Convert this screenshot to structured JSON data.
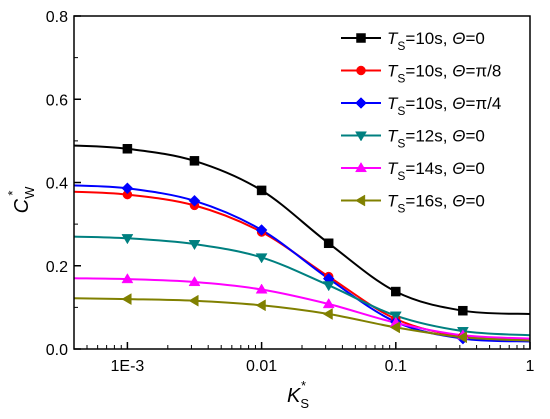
{
  "chart_data": {
    "type": "line",
    "title": "",
    "xlabel": {
      "main": "K",
      "sub": "S",
      "sup": "*"
    },
    "ylabel": {
      "main": "C",
      "sub": "W",
      "sup": "*"
    },
    "xscale": "log",
    "xlim": [
      0.0004,
      1
    ],
    "ylim": [
      0,
      0.8
    ],
    "xticks": [
      {
        "value": 0.001,
        "label": "1E-3"
      },
      {
        "value": 0.01,
        "label": "0.01"
      },
      {
        "value": 0.1,
        "label": "0.1"
      },
      {
        "value": 1,
        "label": "1"
      }
    ],
    "yticks": [
      {
        "value": 0.0,
        "label": "0.0"
      },
      {
        "value": 0.2,
        "label": "0.2"
      },
      {
        "value": 0.4,
        "label": "0.4"
      },
      {
        "value": 0.6,
        "label": "0.6"
      },
      {
        "value": 0.8,
        "label": "0.8"
      }
    ],
    "grid": false,
    "legend_position": "top-right",
    "series": [
      {
        "name": "T_S=10s, Θ=0",
        "legend": {
          "a": "T",
          "b": "S",
          "c": "=10s, ",
          "d": "Θ",
          "e": "=0"
        },
        "color": "#000000",
        "marker": "square",
        "x": [
          0.0004,
          0.001,
          0.00316,
          0.01,
          0.0316,
          0.1,
          0.316,
          1
        ],
        "y": [
          0.489,
          0.481,
          0.452,
          0.381,
          0.254,
          0.138,
          0.092,
          0.084
        ]
      },
      {
        "name": "T_S=10s, Θ=π/8",
        "legend": {
          "a": "T",
          "b": "S",
          "c": "=10s, ",
          "d": "Θ",
          "e": "=π/8"
        },
        "color": "#ff0000",
        "marker": "circle",
        "x": [
          0.0004,
          0.001,
          0.00316,
          0.01,
          0.0316,
          0.1,
          0.316,
          1
        ],
        "y": [
          0.378,
          0.371,
          0.345,
          0.281,
          0.174,
          0.072,
          0.03,
          0.022
        ]
      },
      {
        "name": "T_S=10s, Θ=π/4",
        "legend": {
          "a": "T",
          "b": "S",
          "c": "=10s, ",
          "d": "Θ",
          "e": "=π/4"
        },
        "color": "#0000ff",
        "marker": "diamond",
        "x": [
          0.0004,
          0.001,
          0.00316,
          0.01,
          0.0316,
          0.1,
          0.316,
          1
        ],
        "y": [
          0.393,
          0.386,
          0.356,
          0.286,
          0.169,
          0.065,
          0.025,
          0.018
        ]
      },
      {
        "name": "T_S=12s, Θ=0",
        "legend": {
          "a": "T",
          "b": "S",
          "c": "=12s, ",
          "d": "Θ",
          "e": "=0"
        },
        "color": "#008080",
        "marker": "triangle-down",
        "x": [
          0.0004,
          0.001,
          0.00316,
          0.01,
          0.0316,
          0.1,
          0.316,
          1
        ],
        "y": [
          0.27,
          0.266,
          0.252,
          0.22,
          0.153,
          0.08,
          0.043,
          0.033
        ]
      },
      {
        "name": "T_S=14s, Θ=0",
        "legend": {
          "a": "T",
          "b": "S",
          "c": "=14s, ",
          "d": "Θ",
          "e": "=0"
        },
        "color": "#ff00ff",
        "marker": "triangle-up",
        "x": [
          0.0004,
          0.001,
          0.00316,
          0.01,
          0.0316,
          0.1,
          0.316,
          1
        ],
        "y": [
          0.17,
          0.168,
          0.161,
          0.143,
          0.108,
          0.063,
          0.033,
          0.025
        ]
      },
      {
        "name": "T_S=16s, Θ=0",
        "legend": {
          "a": "T",
          "b": "S",
          "c": "=16s, ",
          "d": "Θ",
          "e": "=0"
        },
        "color": "#808000",
        "marker": "triangle-left",
        "x": [
          0.0004,
          0.001,
          0.00316,
          0.01,
          0.0316,
          0.1,
          0.316,
          1
        ],
        "y": [
          0.122,
          0.12,
          0.116,
          0.105,
          0.084,
          0.052,
          0.028,
          0.02
        ]
      }
    ]
  }
}
